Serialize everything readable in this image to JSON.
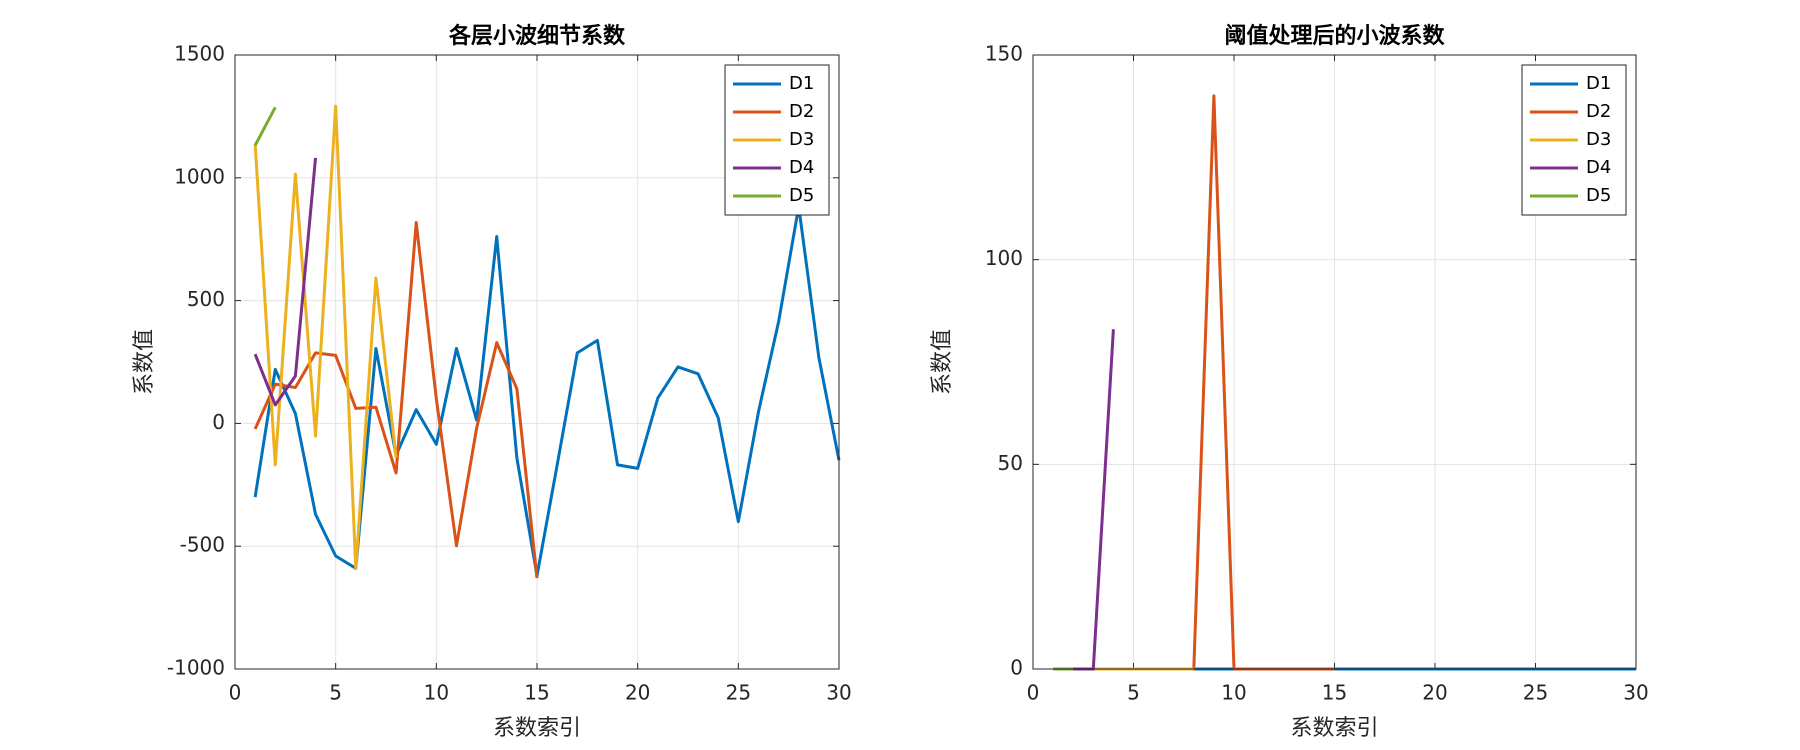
{
  "chart_data": [
    {
      "type": "line",
      "title": "各层小波细节系数",
      "xlabel": "系数索引",
      "ylabel": "系数值",
      "x": [
        1,
        2,
        3,
        4,
        5,
        6,
        7,
        8,
        9,
        10,
        11,
        12,
        13,
        14,
        15,
        16,
        17,
        18,
        19,
        20,
        21,
        22,
        23,
        24,
        25,
        26,
        27,
        28,
        29,
        30
      ],
      "series": [
        {
          "name": "D1",
          "color": "#0072BD",
          "values": [
            -300,
            220,
            40,
            -370,
            -540,
            -590,
            305,
            -130,
            56,
            -85,
            305,
            14,
            761,
            -141,
            -620,
            -170,
            287,
            338,
            -169,
            -183,
            103,
            230,
            202,
            23,
            -400,
            47,
            414,
            883,
            268,
            -150
          ]
        },
        {
          "name": "D2",
          "color": "#D95319",
          "values": [
            -23,
            160,
            146,
            287,
            277,
            61,
            66,
            -202,
            818,
            100,
            -498,
            -20,
            329,
            141,
            -630,
            null,
            null,
            null,
            null,
            null,
            null,
            null,
            null,
            null,
            null,
            null,
            null,
            null,
            null,
            null
          ]
        },
        {
          "name": "D3",
          "color": "#EDB120",
          "values": [
            1137,
            -169,
            1015,
            -52,
            1292,
            -592,
            592,
            -140,
            null,
            null,
            null,
            null,
            null,
            null,
            null,
            null,
            null,
            null,
            null,
            null,
            null,
            null,
            null,
            null,
            null,
            null,
            null,
            null,
            null,
            null
          ]
        },
        {
          "name": "D4",
          "color": "#7E2F8E",
          "values": [
            282,
            75,
            193,
            1081,
            null,
            null,
            null,
            null,
            null,
            null,
            null,
            null,
            null,
            null,
            null,
            null,
            null,
            null,
            null,
            null,
            null,
            null,
            null,
            null,
            null,
            null,
            null,
            null,
            null,
            null
          ]
        },
        {
          "name": "D5",
          "color": "#77AC30",
          "values": [
            1132,
            1287,
            null,
            null,
            null,
            null,
            null,
            null,
            null,
            null,
            null,
            null,
            null,
            null,
            null,
            null,
            null,
            null,
            null,
            null,
            null,
            null,
            null,
            null,
            null,
            null,
            null,
            null,
            null,
            null
          ]
        }
      ],
      "xlim": [
        0,
        30
      ],
      "xticks": [
        0,
        5,
        10,
        15,
        20,
        25,
        30
      ],
      "ylim": [
        -1000,
        1500
      ],
      "yticks": [
        -1000,
        -500,
        0,
        500,
        1000,
        1500
      ],
      "grid": true,
      "legend": "upper-right"
    },
    {
      "type": "line",
      "title": "阈值处理后的小波系数",
      "xlabel": "系数索引",
      "ylabel": "系数值",
      "x": [
        1,
        2,
        3,
        4,
        5,
        6,
        7,
        8,
        9,
        10,
        11,
        12,
        13,
        14,
        15,
        16,
        17,
        18,
        19,
        20,
        21,
        22,
        23,
        24,
        25,
        26,
        27,
        28,
        29,
        30
      ],
      "series": [
        {
          "name": "D1",
          "color": "#0072BD",
          "values": [
            0,
            0,
            0,
            0,
            0,
            0,
            0,
            0,
            0,
            0,
            0,
            0,
            0,
            0,
            0,
            0,
            0,
            0,
            0,
            0,
            0,
            0,
            0,
            0,
            0,
            0,
            0,
            0,
            0,
            0
          ]
        },
        {
          "name": "D2",
          "color": "#D95319",
          "values": [
            0,
            0,
            0,
            0,
            0,
            0,
            0,
            0,
            140,
            0,
            0,
            0,
            0,
            0,
            0,
            null,
            null,
            null,
            null,
            null,
            null,
            null,
            null,
            null,
            null,
            null,
            null,
            null,
            null,
            null
          ]
        },
        {
          "name": "D3",
          "color": "#EDB120",
          "values": [
            0,
            0,
            0,
            0,
            0,
            0,
            0,
            0,
            null,
            null,
            null,
            null,
            null,
            null,
            null,
            null,
            null,
            null,
            null,
            null,
            null,
            null,
            null,
            null,
            null,
            null,
            null,
            null,
            null,
            null
          ]
        },
        {
          "name": "D4",
          "color": "#7E2F8E",
          "values": [
            0,
            0,
            0,
            83,
            null,
            null,
            null,
            null,
            null,
            null,
            null,
            null,
            null,
            null,
            null,
            null,
            null,
            null,
            null,
            null,
            null,
            null,
            null,
            null,
            null,
            null,
            null,
            null,
            null,
            null
          ]
        },
        {
          "name": "D5",
          "color": "#77AC30",
          "values": [
            0,
            0,
            null,
            null,
            null,
            null,
            null,
            null,
            null,
            null,
            null,
            null,
            null,
            null,
            null,
            null,
            null,
            null,
            null,
            null,
            null,
            null,
            null,
            null,
            null,
            null,
            null,
            null,
            null,
            null
          ]
        }
      ],
      "xlim": [
        0,
        30
      ],
      "xticks": [
        0,
        5,
        10,
        15,
        20,
        25,
        30
      ],
      "ylim": [
        0,
        150
      ],
      "yticks": [
        0,
        50,
        100,
        150
      ],
      "grid": true,
      "legend": "upper-right"
    }
  ]
}
